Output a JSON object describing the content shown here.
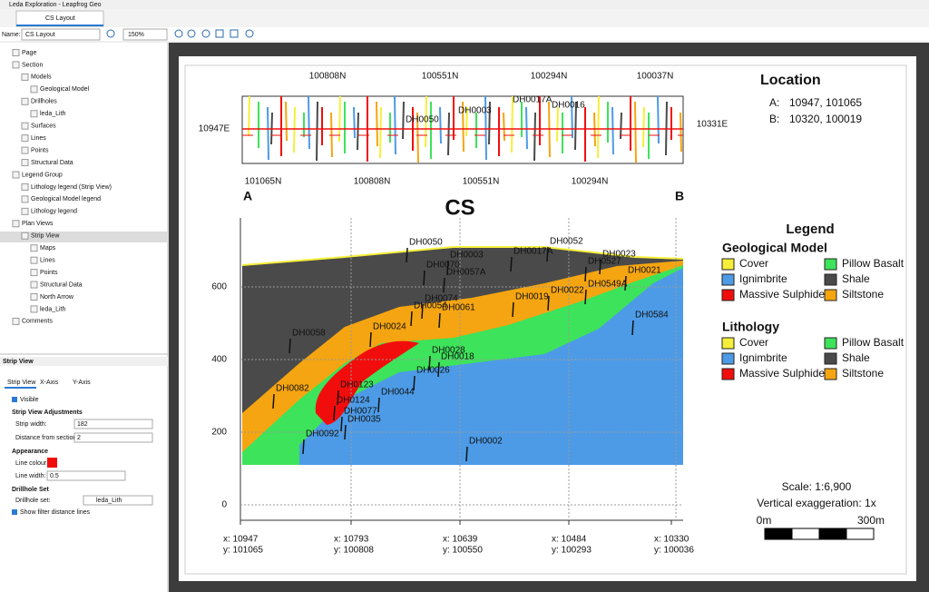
{
  "window": {
    "title": "Leda Exploration - Leapfrog Geo",
    "tab": "CS Layout"
  },
  "toolbar": {
    "name_label": "Name:",
    "name_value": "CS Layout",
    "zoom": "150%"
  },
  "tree": [
    "Page",
    "Section",
    "Models",
    "Geological Model",
    "Drillholes",
    "leda_Lith",
    "Surfaces",
    "Lines",
    "Points",
    "Structural Data",
    "Legend Group",
    "Lithology legend (Strip View)",
    "Geological Model legend",
    "Lithology legend",
    "Plan Views",
    "Strip View",
    "Maps",
    "Lines",
    "Points",
    "Structural Data",
    "North Arrow",
    "leda_Lith",
    "Comments"
  ],
  "properties": {
    "title": "Strip View",
    "tabs": [
      "Strip View",
      "X-Axis",
      "Y-Axis"
    ],
    "visible": "Visible",
    "adjustments": "Strip View Adjustments",
    "strip_width_label": "Strip width:",
    "strip_width": "182",
    "distance_label": "Distance from section:",
    "distance": "2",
    "appearance": "Appearance",
    "line_colour_label": "Line colour:",
    "line_width_label": "Line width:",
    "line_width": "0.5",
    "drillhole_heading": "Drillhole Set",
    "drillhole_set_label": "Drillhole set:",
    "drillhole_set": "leda_Lith",
    "show_filter": "Show filter distance lines"
  },
  "strip_map": {
    "top_labels": [
      "100808N",
      "100551N",
      "100294N",
      "100037N"
    ],
    "bottom_labels": [
      "101065N",
      "100808N",
      "100551N",
      "100294N"
    ],
    "left_label": "10947E",
    "right_label": "10331E",
    "drillholes": [
      "DH0003",
      "DH0017A",
      "DH0016",
      "DH0050"
    ]
  },
  "section": {
    "end_a": "A",
    "end_b": "B",
    "title": "CS",
    "yticks": [
      600,
      400,
      200,
      0
    ],
    "xlabels": [
      {
        "x": "x: 10947",
        "y": "y: 101065"
      },
      {
        "x": "x: 10793",
        "y": "y: 100808"
      },
      {
        "x": "x: 10639",
        "y": "y: 100550"
      },
      {
        "x": "x: 10484",
        "y": "y: 100293"
      },
      {
        "x": "x: 10330",
        "y": "y: 100036"
      }
    ],
    "drillholes": [
      "DH0050",
      "DH0003",
      "DH0017A",
      "DH0052",
      "DH0023",
      "DH0527",
      "DH0021",
      "DH0070",
      "DH0057A",
      "DH0549A",
      "DH0019",
      "DH0022",
      "DH0074",
      "DH0061",
      "DH0054",
      "DH0024",
      "DH0028",
      "DH0018",
      "DH0584",
      "DH0026",
      "DH0058",
      "DH0082",
      "DH0044",
      "DH0123",
      "DH0124",
      "DH0077",
      "DH0035",
      "DH0092",
      "DH0002"
    ]
  },
  "location": {
    "title": "Location",
    "points": [
      {
        "label": "A:",
        "value": "10947, 101065"
      },
      {
        "label": "B:",
        "value": "10320, 100019"
      }
    ]
  },
  "legend": {
    "title": "Legend",
    "groups": [
      {
        "title": "Geological Model",
        "items": [
          {
            "name": "Cover",
            "color": "#f5ef3a"
          },
          {
            "name": "Pillow Basalt",
            "color": "#3de35a"
          },
          {
            "name": "Ignimbrite",
            "color": "#4d9be6"
          },
          {
            "name": "Shale",
            "color": "#4a4a4a"
          },
          {
            "name": "Massive Sulphide",
            "color": "#f20d0d"
          },
          {
            "name": "Siltstone",
            "color": "#f5a511"
          }
        ]
      },
      {
        "title": "Lithology",
        "items": [
          {
            "name": "Cover",
            "color": "#f5ef3a"
          },
          {
            "name": "Pillow Basalt",
            "color": "#3de35a"
          },
          {
            "name": "Ignimbrite",
            "color": "#4d9be6"
          },
          {
            "name": "Shale",
            "color": "#4a4a4a"
          },
          {
            "name": "Massive Sulphide",
            "color": "#f20d0d"
          },
          {
            "name": "Siltstone",
            "color": "#f5a511"
          }
        ]
      }
    ]
  },
  "scale": {
    "ratio": "Scale: 1:6,900",
    "exaggeration": "Vertical exaggeration: 1x",
    "start": "0m",
    "end": "300m"
  }
}
